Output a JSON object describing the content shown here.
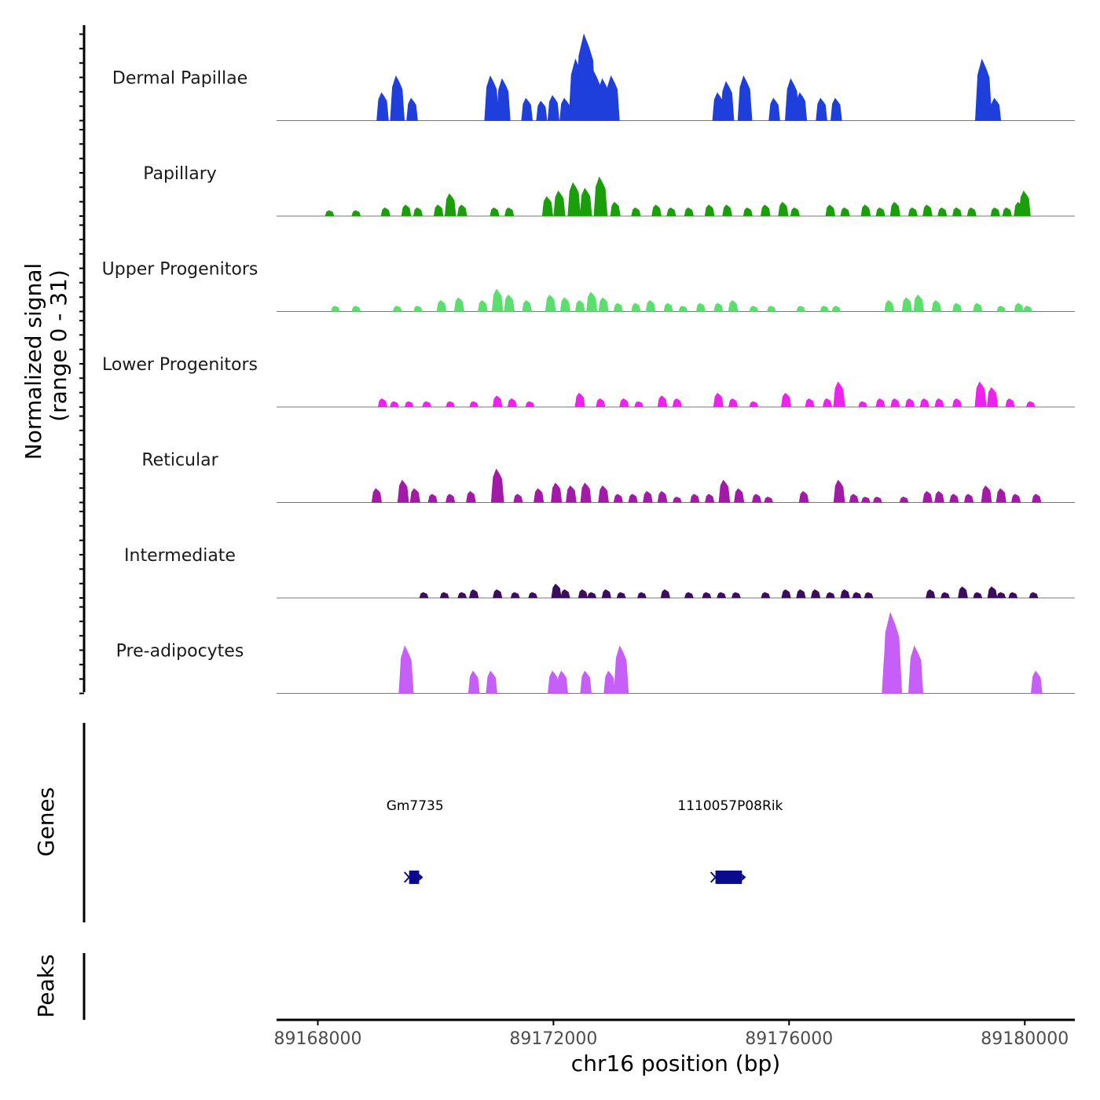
{
  "chart_data": {
    "type": "area",
    "title": "",
    "chromosome": "chr16",
    "xlabel": "chr16 position (bp)",
    "ylabel_line1": "Normalized signal",
    "ylabel_line2": "(range 0 - 31)",
    "y_range": [
      0,
      31
    ],
    "xlim": [
      89167300,
      89180850
    ],
    "x_ticks": [
      89168000,
      89172000,
      89176000,
      89180000
    ],
    "x_tick_labels": [
      "89168000",
      "89172000",
      "89176000",
      "89180000"
    ],
    "genes_label": "Genes",
    "peaks_label": "Peaks",
    "tracks": [
      {
        "name": "Dermal Papillae",
        "color": "#1f3fdc",
        "peaks": [
          [
            89169100,
            10
          ],
          [
            89169350,
            16
          ],
          [
            89169600,
            8
          ],
          [
            89170950,
            16
          ],
          [
            89171150,
            15
          ],
          [
            89171550,
            8
          ],
          [
            89171800,
            7
          ],
          [
            89172000,
            9
          ],
          [
            89172200,
            8
          ],
          [
            89172400,
            22
          ],
          [
            89172550,
            31
          ],
          [
            89172700,
            18
          ],
          [
            89172850,
            15
          ],
          [
            89173000,
            16
          ],
          [
            89174800,
            10
          ],
          [
            89174950,
            14
          ],
          [
            89175250,
            16
          ],
          [
            89175750,
            8
          ],
          [
            89176050,
            15
          ],
          [
            89176200,
            10
          ],
          [
            89176550,
            8
          ],
          [
            89176800,
            8
          ],
          [
            89179300,
            22
          ],
          [
            89179500,
            8
          ]
        ]
      },
      {
        "name": "Papillary",
        "color": "#1a9e0a",
        "peaks": [
          [
            89168200,
            2
          ],
          [
            89168650,
            2
          ],
          [
            89169150,
            3
          ],
          [
            89169500,
            4
          ],
          [
            89169700,
            3
          ],
          [
            89170050,
            4
          ],
          [
            89170250,
            8
          ],
          [
            89170450,
            4
          ],
          [
            89171000,
            3
          ],
          [
            89171250,
            3
          ],
          [
            89171900,
            7
          ],
          [
            89172100,
            9
          ],
          [
            89172350,
            12
          ],
          [
            89172550,
            10
          ],
          [
            89172800,
            14
          ],
          [
            89173050,
            5
          ],
          [
            89173400,
            3
          ],
          [
            89173750,
            4
          ],
          [
            89174000,
            3
          ],
          [
            89174300,
            3
          ],
          [
            89174650,
            4
          ],
          [
            89174950,
            4
          ],
          [
            89175300,
            3
          ],
          [
            89175600,
            4
          ],
          [
            89175900,
            5
          ],
          [
            89176100,
            3
          ],
          [
            89176700,
            4
          ],
          [
            89176950,
            3
          ],
          [
            89177300,
            4
          ],
          [
            89177550,
            3
          ],
          [
            89177800,
            5
          ],
          [
            89178100,
            3
          ],
          [
            89178350,
            4
          ],
          [
            89178600,
            3
          ],
          [
            89178850,
            3
          ],
          [
            89179100,
            3
          ],
          [
            89179500,
            3
          ],
          [
            89179700,
            3
          ],
          [
            89179900,
            5
          ],
          [
            89180000,
            9
          ]
        ]
      },
      {
        "name": "Upper Progenitors",
        "color": "#5cde6e",
        "peaks": [
          [
            89168300,
            2
          ],
          [
            89168650,
            2
          ],
          [
            89169350,
            2
          ],
          [
            89169700,
            2
          ],
          [
            89170100,
            4
          ],
          [
            89170400,
            5
          ],
          [
            89170800,
            4
          ],
          [
            89171050,
            8
          ],
          [
            89171250,
            6
          ],
          [
            89171550,
            4
          ],
          [
            89171950,
            6
          ],
          [
            89172200,
            5
          ],
          [
            89172450,
            4
          ],
          [
            89172650,
            7
          ],
          [
            89172850,
            5
          ],
          [
            89173100,
            3
          ],
          [
            89173400,
            3
          ],
          [
            89173650,
            4
          ],
          [
            89173950,
            3
          ],
          [
            89174200,
            2
          ],
          [
            89174500,
            3
          ],
          [
            89174800,
            3
          ],
          [
            89175050,
            4
          ],
          [
            89175400,
            2
          ],
          [
            89175700,
            2
          ],
          [
            89176200,
            2
          ],
          [
            89176600,
            2
          ],
          [
            89176800,
            2
          ],
          [
            89177700,
            4
          ],
          [
            89178000,
            5
          ],
          [
            89178200,
            6
          ],
          [
            89178500,
            4
          ],
          [
            89178850,
            3
          ],
          [
            89179200,
            3
          ],
          [
            89179600,
            2
          ],
          [
            89179900,
            3
          ],
          [
            89180050,
            2
          ]
        ]
      },
      {
        "name": "Lower Progenitors",
        "color": "#ee22ee",
        "peaks": [
          [
            89169100,
            3
          ],
          [
            89169300,
            2
          ],
          [
            89169550,
            2
          ],
          [
            89169850,
            2
          ],
          [
            89170250,
            2
          ],
          [
            89170650,
            2
          ],
          [
            89171050,
            4
          ],
          [
            89171300,
            3
          ],
          [
            89171600,
            2
          ],
          [
            89172450,
            5
          ],
          [
            89172800,
            3
          ],
          [
            89173200,
            3
          ],
          [
            89173450,
            2
          ],
          [
            89173850,
            4
          ],
          [
            89174100,
            3
          ],
          [
            89174800,
            5
          ],
          [
            89175050,
            3
          ],
          [
            89175400,
            2
          ],
          [
            89175950,
            5
          ],
          [
            89176350,
            3
          ],
          [
            89176650,
            3
          ],
          [
            89176850,
            9
          ],
          [
            89177250,
            2
          ],
          [
            89177550,
            3
          ],
          [
            89177800,
            3
          ],
          [
            89178050,
            3
          ],
          [
            89178300,
            3
          ],
          [
            89178550,
            3
          ],
          [
            89178850,
            3
          ],
          [
            89179250,
            9
          ],
          [
            89179450,
            7
          ],
          [
            89179750,
            3
          ],
          [
            89180100,
            2
          ]
        ]
      },
      {
        "name": "Reticular",
        "color": "#a31aa8",
        "peaks": [
          [
            89169000,
            5
          ],
          [
            89169450,
            8
          ],
          [
            89169650,
            5
          ],
          [
            89169950,
            3
          ],
          [
            89170250,
            3
          ],
          [
            89170600,
            4
          ],
          [
            89171050,
            12
          ],
          [
            89171400,
            3
          ],
          [
            89171750,
            5
          ],
          [
            89172050,
            7
          ],
          [
            89172300,
            6
          ],
          [
            89172550,
            7
          ],
          [
            89172850,
            6
          ],
          [
            89173100,
            3
          ],
          [
            89173350,
            3
          ],
          [
            89173600,
            4
          ],
          [
            89173850,
            4
          ],
          [
            89174100,
            2
          ],
          [
            89174400,
            3
          ],
          [
            89174650,
            3
          ],
          [
            89174900,
            8
          ],
          [
            89175150,
            5
          ],
          [
            89175450,
            3
          ],
          [
            89175650,
            2
          ],
          [
            89176250,
            4
          ],
          [
            89176850,
            8
          ],
          [
            89177100,
            3
          ],
          [
            89177300,
            2
          ],
          [
            89177500,
            2
          ],
          [
            89177950,
            2
          ],
          [
            89178350,
            4
          ],
          [
            89178550,
            4
          ],
          [
            89178800,
            3
          ],
          [
            89179050,
            3
          ],
          [
            89179350,
            6
          ],
          [
            89179600,
            5
          ],
          [
            89179850,
            3
          ],
          [
            89180200,
            3
          ]
        ]
      },
      {
        "name": "Intermediate",
        "color": "#3b0d5c",
        "peaks": [
          [
            89169800,
            2
          ],
          [
            89170150,
            2
          ],
          [
            89170450,
            2
          ],
          [
            89170650,
            3
          ],
          [
            89171050,
            3
          ],
          [
            89171350,
            2
          ],
          [
            89171650,
            2
          ],
          [
            89172050,
            5
          ],
          [
            89172200,
            3
          ],
          [
            89172500,
            3
          ],
          [
            89172650,
            2
          ],
          [
            89172900,
            3
          ],
          [
            89173150,
            2
          ],
          [
            89173500,
            2
          ],
          [
            89173900,
            3
          ],
          [
            89174300,
            2
          ],
          [
            89174600,
            2
          ],
          [
            89174850,
            2
          ],
          [
            89175100,
            2
          ],
          [
            89175600,
            2
          ],
          [
            89175950,
            3
          ],
          [
            89176200,
            3
          ],
          [
            89176450,
            3
          ],
          [
            89176700,
            2
          ],
          [
            89176950,
            3
          ],
          [
            89177150,
            2
          ],
          [
            89177350,
            2
          ],
          [
            89178400,
            3
          ],
          [
            89178650,
            2
          ],
          [
            89178950,
            4
          ],
          [
            89179200,
            2
          ],
          [
            89179450,
            4
          ],
          [
            89179600,
            2
          ],
          [
            89179800,
            2
          ],
          [
            89180150,
            2
          ]
        ]
      },
      {
        "name": "Pre-adipocytes",
        "color": "#c65ef8",
        "peaks": [
          [
            89169500,
            17
          ],
          [
            89170650,
            8
          ],
          [
            89170950,
            8
          ],
          [
            89172000,
            8
          ],
          [
            89172150,
            8
          ],
          [
            89172550,
            8
          ],
          [
            89172950,
            8
          ],
          [
            89173150,
            17
          ],
          [
            89177700,
            17
          ],
          [
            89177750,
            29
          ],
          [
            89178150,
            17
          ],
          [
            89180200,
            8
          ]
        ]
      }
    ],
    "genes": [
      {
        "name": "Gm7735",
        "start": 89169550,
        "end": 89169720,
        "label_pos": 89169650
      },
      {
        "name": "1110057P08Rik",
        "start": 89174750,
        "end": 89175200,
        "label_pos": 89175000
      }
    ]
  }
}
